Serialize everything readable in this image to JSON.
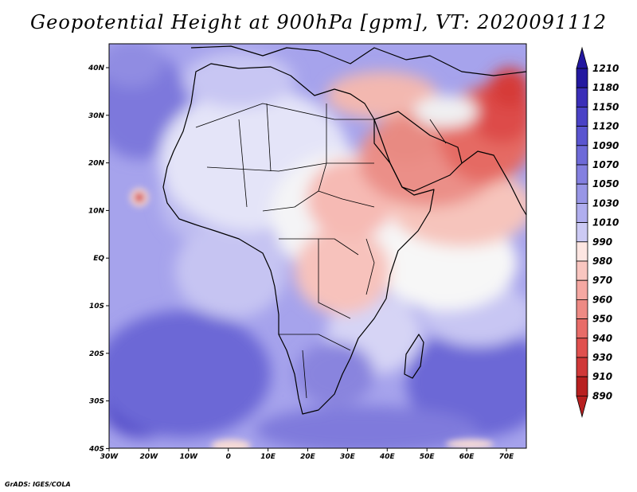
{
  "title": "Geopotential Height at 900hPa [gpm], VT: 2020091112",
  "credit": "GrADS: IGES/COLA",
  "map": {
    "x_axis_labels": [
      "30W",
      "20W",
      "10W",
      "0",
      "10E",
      "20E",
      "30E",
      "40E",
      "50E",
      "60E",
      "70E"
    ],
    "y_axis_labels": [
      "40N",
      "30N",
      "20N",
      "10N",
      "EQ",
      "10S",
      "20S",
      "30S",
      "40S"
    ],
    "lon_range": [
      -30,
      75
    ],
    "lat_range": [
      -40,
      45
    ]
  },
  "colorbar": {
    "levels": [
      "1210",
      "1180",
      "1150",
      "1120",
      "1090",
      "1070",
      "1050",
      "1030",
      "1010",
      "990",
      "980",
      "970",
      "960",
      "950",
      "940",
      "930",
      "910",
      "890"
    ],
    "colors": [
      "#2318a0",
      "#3a2eb8",
      "#4a42c6",
      "#5a55d0",
      "#6e6ad8",
      "#8480e0",
      "#9896e6",
      "#b0aeee",
      "#cccaf4",
      "#f2f2f2",
      "#fde6e2",
      "#f9c6c0",
      "#f5a8a2",
      "#ee8a84",
      "#e86c68",
      "#e0504e",
      "#d03838",
      "#b82020"
    ]
  }
}
